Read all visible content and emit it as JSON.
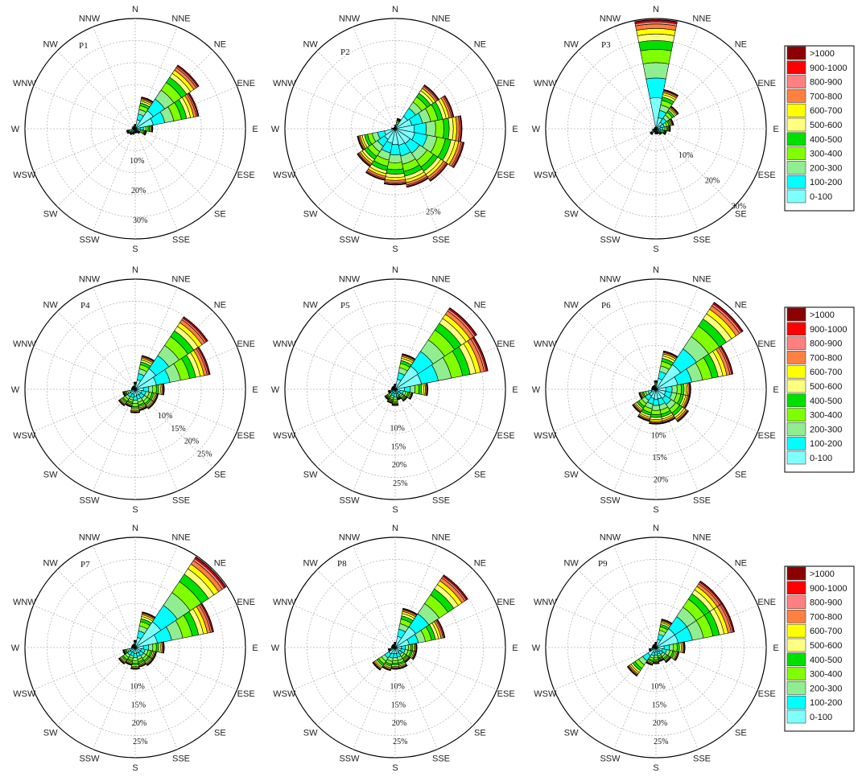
{
  "directions": [
    "N",
    "NNE",
    "NE",
    "ENE",
    "E",
    "ESE",
    "SE",
    "SSE",
    "S",
    "SSW",
    "SW",
    "WSW",
    "W",
    "WNW",
    "NW",
    "NNW"
  ],
  "legend": {
    "labels": [
      ">1000",
      "900-1000",
      "800-900",
      "700-800",
      "600-700",
      "500-600",
      "400-500",
      "300-400",
      "200-300",
      "100-200",
      "0-100"
    ],
    "colors": [
      "#8b0000",
      "#ff0000",
      "#ff8080",
      "#ff8040",
      "#ffff00",
      "#ffff80",
      "#00e000",
      "#80ff00",
      "#90ee90",
      "#00ffff",
      "#80ffff"
    ]
  },
  "chart_data": [
    {
      "type": "wind-rose",
      "title": "P1",
      "radial_labels": [
        "10%",
        "20%",
        "30%"
      ],
      "radial_values": [
        10,
        20,
        30
      ],
      "rmax": 37,
      "directions": [
        "N",
        "NNE",
        "NE",
        "ENE",
        "E",
        "ESE",
        "SE",
        "SSE",
        "S",
        "SSW",
        "SW",
        "WSW",
        "W",
        "WNW",
        "NW",
        "NNW"
      ],
      "totals": [
        1.5,
        11,
        26,
        22,
        6,
        4,
        2,
        1.5,
        1.5,
        2,
        2.5,
        3,
        1,
        1,
        1,
        1
      ]
    },
    {
      "type": "wind-rose",
      "title": "P2",
      "radial_labels": [
        "25%"
      ],
      "radial_values": [
        25
      ],
      "rmax": 31,
      "directions": [
        "N",
        "NNE",
        "NE",
        "ENE",
        "E",
        "ESE",
        "SE",
        "SSE",
        "S",
        "SSW",
        "SW",
        "WSW",
        "W",
        "WNW",
        "NW",
        "NNW"
      ],
      "totals": [
        1,
        3,
        15,
        17,
        19,
        20,
        18,
        17,
        16,
        15,
        13,
        11,
        1,
        0.5,
        0.5,
        0.5
      ]
    },
    {
      "type": "wind-rose",
      "title": "P3",
      "radial_labels": [
        "10%",
        "20%",
        "30%"
      ],
      "radial_values": [
        10,
        20,
        30
      ],
      "rmax": 30,
      "directions": [
        "N",
        "NNE",
        "NE",
        "ENE",
        "E",
        "ESE",
        "SE",
        "SSE",
        "S",
        "SSW",
        "SW",
        "WSW",
        "W",
        "WNW",
        "NW",
        "NNW"
      ],
      "totals": [
        30,
        11,
        7.5,
        5,
        4,
        3,
        2,
        1.5,
        1.5,
        1,
        2,
        1,
        0.5,
        0.5,
        0.5,
        0.5
      ]
    },
    {
      "type": "wind-rose",
      "title": "P4",
      "radial_labels": [
        "10%",
        "15%",
        "20%",
        "25%"
      ],
      "radial_values": [
        10,
        15,
        20,
        25
      ],
      "rmax": 30,
      "directions": [
        "N",
        "NNE",
        "NE",
        "ENE",
        "E",
        "ESE",
        "SE",
        "SSE",
        "S",
        "SSW",
        "SW",
        "WSW",
        "W",
        "WNW",
        "NW",
        "NNW"
      ],
      "totals": [
        2,
        9.5,
        24,
        21,
        8,
        6.5,
        6.5,
        6,
        6.5,
        5,
        5.5,
        3.5,
        1,
        1,
        1,
        1
      ]
    },
    {
      "type": "wind-rose",
      "title": "P5",
      "radial_labels": [
        "10%",
        "15%",
        "20%",
        "25%"
      ],
      "radial_values": [
        10,
        15,
        20,
        25
      ],
      "rmax": 30,
      "directions": [
        "N",
        "NNE",
        "NE",
        "ENE",
        "E",
        "ESE",
        "SE",
        "SSE",
        "S",
        "SSW",
        "SW",
        "WSW",
        "W",
        "WNW",
        "NW",
        "NNW"
      ],
      "totals": [
        1.5,
        10,
        27,
        26,
        9,
        5,
        4,
        3,
        4.5,
        4,
        3.5,
        2,
        1,
        1,
        1,
        1
      ]
    },
    {
      "type": "wind-rose",
      "title": "P6",
      "radial_labels": [
        "10%",
        "15%",
        "20%"
      ],
      "radial_values": [
        10,
        15,
        20
      ],
      "rmax": 25,
      "directions": [
        "N",
        "NNE",
        "NE",
        "ENE",
        "E",
        "ESE",
        "SE",
        "SSE",
        "S",
        "SSW",
        "SW",
        "WSW",
        "W",
        "WNW",
        "NW",
        "NNW"
      ],
      "totals": [
        2,
        9,
        24,
        18,
        8,
        8,
        9,
        8,
        8,
        7.5,
        6.5,
        4,
        1,
        1,
        1,
        1
      ]
    },
    {
      "type": "wind-rose",
      "title": "P7",
      "radial_labels": [
        "10%",
        "15%",
        "20%",
        "25%"
      ],
      "radial_values": [
        10,
        15,
        20,
        25
      ],
      "rmax": 30,
      "directions": [
        "N",
        "NNE",
        "NE",
        "ENE",
        "E",
        "ESE",
        "SE",
        "SSE",
        "S",
        "SSW",
        "SW",
        "WSW",
        "W",
        "WNW",
        "NW",
        "NNW"
      ],
      "totals": [
        2,
        10,
        30,
        22,
        8,
        6,
        6,
        5.5,
        6,
        5,
        5.5,
        3.5,
        1,
        1,
        1,
        1
      ]
    },
    {
      "type": "wind-rose",
      "title": "P8",
      "radial_labels": [
        "10%",
        "15%",
        "20%",
        "25%"
      ],
      "radial_values": [
        10,
        15,
        20,
        25
      ],
      "rmax": 30,
      "directions": [
        "N",
        "NNE",
        "NE",
        "ENE",
        "E",
        "ESE",
        "SE",
        "SSE",
        "S",
        "SSW",
        "SW",
        "WSW",
        "W",
        "WNW",
        "NW",
        "NNW"
      ],
      "totals": [
        1.5,
        11,
        24,
        14,
        6,
        6,
        5,
        6,
        6,
        6.5,
        7.5,
        2,
        1,
        1,
        1,
        1
      ]
    },
    {
      "type": "wind-rose",
      "title": "P9",
      "radial_labels": [
        "10%",
        "15%",
        "20%",
        "25%"
      ],
      "radial_values": [
        10,
        15,
        20,
        25
      ],
      "rmax": 30,
      "directions": [
        "N",
        "NNE",
        "NE",
        "ENE",
        "E",
        "ESE",
        "SE",
        "SSE",
        "S",
        "SSW",
        "SW",
        "WSW",
        "W",
        "WNW",
        "NW",
        "NNW"
      ],
      "totals": [
        1.5,
        8,
        22,
        22,
        8,
        6.5,
        5,
        4,
        4.5,
        5,
        9.5,
        2,
        1,
        1,
        1,
        1
      ]
    }
  ]
}
